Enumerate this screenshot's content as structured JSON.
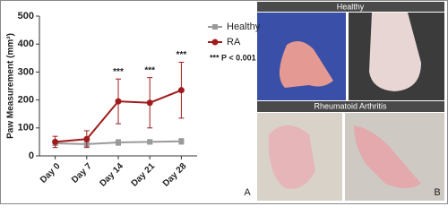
{
  "chart_data": {
    "type": "line",
    "y_label": "Paw Measurement (mm³)",
    "categories": [
      "Day 0",
      "Day 7",
      "Day 14",
      "Day 21",
      "Day 28"
    ],
    "series": [
      {
        "name": "Healthy",
        "color": "#9a9a9a",
        "marker": "square",
        "values": [
          45,
          42,
          48,
          50,
          52
        ],
        "errors": [
          8,
          8,
          10,
          8,
          10
        ]
      },
      {
        "name": "RA",
        "color": "#a01c1c",
        "marker": "circle",
        "values": [
          50,
          60,
          195,
          190,
          235
        ],
        "errors": [
          20,
          30,
          80,
          90,
          100
        ]
      }
    ],
    "significance": [
      null,
      null,
      "***",
      "***",
      "***"
    ],
    "significance_note": "*** P < 0.001",
    "ylim": [
      0,
      500
    ],
    "yticks": [
      0,
      100,
      200,
      300,
      400,
      500
    ],
    "grid": false
  },
  "panels": {
    "a_label": "A",
    "b_label": "B",
    "healthy_title": "Healthy",
    "ra_title": "Rheumatoid Arthritis"
  }
}
